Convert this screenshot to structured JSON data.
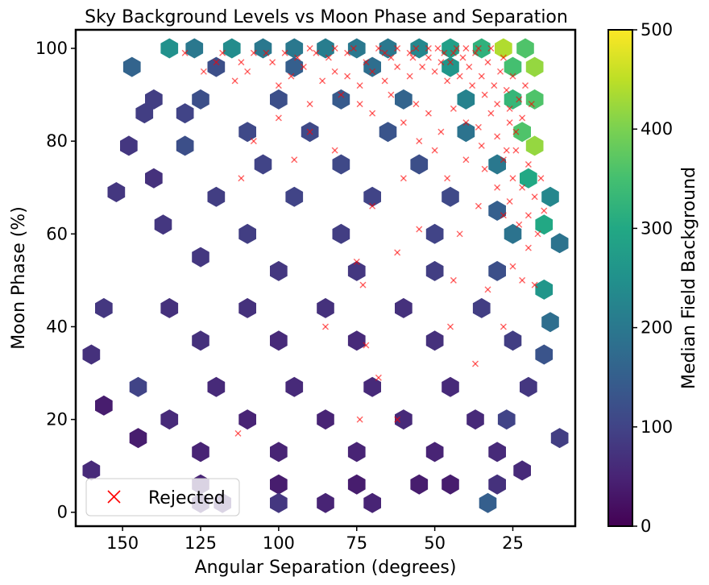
{
  "chart_data": {
    "type": "hexbin",
    "title": "Sky Background Levels vs Moon Phase and Separation",
    "xlabel": "Angular Separation (degrees)",
    "ylabel": "Moon Phase (%)",
    "x_inverted": true,
    "xlim": [
      165,
      5
    ],
    "ylim": [
      -3,
      104
    ],
    "x_ticks": [
      150,
      125,
      100,
      75,
      50,
      25
    ],
    "y_ticks": [
      0,
      20,
      40,
      60,
      80,
      100
    ],
    "colorbar": {
      "label": "Median Field Background",
      "colormap": "viridis",
      "range": [
        0,
        500
      ],
      "ticks": [
        0,
        100,
        200,
        300,
        400,
        500
      ]
    },
    "legend": {
      "position": "lower-left",
      "entries": [
        {
          "label": "Rejected",
          "marker": "x",
          "color": "#ff0000"
        }
      ]
    },
    "hexbin_trend": "Median background rises with moon phase and as angular separation decreases; highest values (~300-450) at phase near 100% and separation below 30 degrees.",
    "colorscale_stops": [
      "#440154",
      "#3b528b",
      "#21918c",
      "#5ec962",
      "#fde725"
    ],
    "hex_cells": [
      {
        "x": 135,
        "y": 100,
        "v": 250
      },
      {
        "x": 127,
        "y": 100,
        "v": 200
      },
      {
        "x": 115,
        "y": 100,
        "v": 240
      },
      {
        "x": 105,
        "y": 100,
        "v": 200
      },
      {
        "x": 95,
        "y": 100,
        "v": 200
      },
      {
        "x": 85,
        "y": 100,
        "v": 210
      },
      {
        "x": 75,
        "y": 100,
        "v": 200
      },
      {
        "x": 65,
        "y": 100,
        "v": 200
      },
      {
        "x": 55,
        "y": 100,
        "v": 230
      },
      {
        "x": 45,
        "y": 100,
        "v": 280
      },
      {
        "x": 35,
        "y": 100,
        "v": 320
      },
      {
        "x": 28,
        "y": 100,
        "v": 440
      },
      {
        "x": 21,
        "y": 100,
        "v": 360
      },
      {
        "x": 147,
        "y": 96,
        "v": 160
      },
      {
        "x": 120,
        "y": 96,
        "v": 120
      },
      {
        "x": 95,
        "y": 96,
        "v": 150
      },
      {
        "x": 70,
        "y": 96,
        "v": 180
      },
      {
        "x": 45,
        "y": 96,
        "v": 260
      },
      {
        "x": 25,
        "y": 96,
        "v": 350
      },
      {
        "x": 18,
        "y": 96,
        "v": 420
      },
      {
        "x": 140,
        "y": 89,
        "v": 90
      },
      {
        "x": 125,
        "y": 89,
        "v": 120
      },
      {
        "x": 100,
        "y": 89,
        "v": 120
      },
      {
        "x": 80,
        "y": 89,
        "v": 140
      },
      {
        "x": 60,
        "y": 89,
        "v": 160
      },
      {
        "x": 40,
        "y": 89,
        "v": 220
      },
      {
        "x": 25,
        "y": 89,
        "v": 330
      },
      {
        "x": 18,
        "y": 89,
        "v": 360
      },
      {
        "x": 143,
        "y": 86,
        "v": 90
      },
      {
        "x": 130,
        "y": 86,
        "v": 100
      },
      {
        "x": 110,
        "y": 82,
        "v": 110
      },
      {
        "x": 90,
        "y": 82,
        "v": 110
      },
      {
        "x": 65,
        "y": 82,
        "v": 130
      },
      {
        "x": 40,
        "y": 82,
        "v": 190
      },
      {
        "x": 22,
        "y": 82,
        "v": 360
      },
      {
        "x": 18,
        "y": 79,
        "v": 420
      },
      {
        "x": 148,
        "y": 79,
        "v": 80
      },
      {
        "x": 130,
        "y": 79,
        "v": 120
      },
      {
        "x": 105,
        "y": 75,
        "v": 100
      },
      {
        "x": 80,
        "y": 75,
        "v": 110
      },
      {
        "x": 55,
        "y": 75,
        "v": 120
      },
      {
        "x": 30,
        "y": 75,
        "v": 200
      },
      {
        "x": 20,
        "y": 72,
        "v": 300
      },
      {
        "x": 152,
        "y": 69,
        "v": 80
      },
      {
        "x": 140,
        "y": 72,
        "v": 70
      },
      {
        "x": 120,
        "y": 68,
        "v": 90
      },
      {
        "x": 95,
        "y": 68,
        "v": 100
      },
      {
        "x": 70,
        "y": 68,
        "v": 100
      },
      {
        "x": 45,
        "y": 68,
        "v": 110
      },
      {
        "x": 30,
        "y": 65,
        "v": 150
      },
      {
        "x": 13,
        "y": 68,
        "v": 230
      },
      {
        "x": 137,
        "y": 62,
        "v": 80
      },
      {
        "x": 110,
        "y": 60,
        "v": 90
      },
      {
        "x": 80,
        "y": 60,
        "v": 90
      },
      {
        "x": 50,
        "y": 60,
        "v": 100
      },
      {
        "x": 25,
        "y": 60,
        "v": 190
      },
      {
        "x": 15,
        "y": 62,
        "v": 300
      },
      {
        "x": 10,
        "y": 58,
        "v": 190
      },
      {
        "x": 125,
        "y": 55,
        "v": 80
      },
      {
        "x": 100,
        "y": 52,
        "v": 80
      },
      {
        "x": 75,
        "y": 52,
        "v": 80
      },
      {
        "x": 50,
        "y": 52,
        "v": 90
      },
      {
        "x": 30,
        "y": 52,
        "v": 120
      },
      {
        "x": 15,
        "y": 48,
        "v": 260
      },
      {
        "x": 156,
        "y": 44,
        "v": 80
      },
      {
        "x": 135,
        "y": 44,
        "v": 70
      },
      {
        "x": 110,
        "y": 44,
        "v": 70
      },
      {
        "x": 85,
        "y": 44,
        "v": 70
      },
      {
        "x": 60,
        "y": 44,
        "v": 70
      },
      {
        "x": 35,
        "y": 44,
        "v": 90
      },
      {
        "x": 13,
        "y": 41,
        "v": 180
      },
      {
        "x": 160,
        "y": 34,
        "v": 70
      },
      {
        "x": 125,
        "y": 37,
        "v": 70
      },
      {
        "x": 100,
        "y": 37,
        "v": 60
      },
      {
        "x": 75,
        "y": 37,
        "v": 60
      },
      {
        "x": 50,
        "y": 37,
        "v": 70
      },
      {
        "x": 25,
        "y": 37,
        "v": 90
      },
      {
        "x": 15,
        "y": 34,
        "v": 130
      },
      {
        "x": 145,
        "y": 27,
        "v": 100
      },
      {
        "x": 120,
        "y": 27,
        "v": 60
      },
      {
        "x": 95,
        "y": 27,
        "v": 60
      },
      {
        "x": 70,
        "y": 27,
        "v": 60
      },
      {
        "x": 45,
        "y": 27,
        "v": 60
      },
      {
        "x": 20,
        "y": 27,
        "v": 80
      },
      {
        "x": 156,
        "y": 23,
        "v": 40
      },
      {
        "x": 135,
        "y": 20,
        "v": 60
      },
      {
        "x": 110,
        "y": 20,
        "v": 50
      },
      {
        "x": 85,
        "y": 20,
        "v": 50
      },
      {
        "x": 60,
        "y": 20,
        "v": 60
      },
      {
        "x": 37,
        "y": 20,
        "v": 60
      },
      {
        "x": 27,
        "y": 20,
        "v": 100
      },
      {
        "x": 145,
        "y": 16,
        "v": 40
      },
      {
        "x": 125,
        "y": 13,
        "v": 50
      },
      {
        "x": 100,
        "y": 13,
        "v": 50
      },
      {
        "x": 75,
        "y": 13,
        "v": 50
      },
      {
        "x": 50,
        "y": 13,
        "v": 50
      },
      {
        "x": 30,
        "y": 13,
        "v": 60
      },
      {
        "x": 10,
        "y": 16,
        "v": 90
      },
      {
        "x": 160,
        "y": 9,
        "v": 60
      },
      {
        "x": 125,
        "y": 6,
        "v": 50
      },
      {
        "x": 100,
        "y": 6,
        "v": 40
      },
      {
        "x": 75,
        "y": 6,
        "v": 40
      },
      {
        "x": 55,
        "y": 6,
        "v": 40
      },
      {
        "x": 45,
        "y": 6,
        "v": 40
      },
      {
        "x": 30,
        "y": 6,
        "v": 70
      },
      {
        "x": 22,
        "y": 9,
        "v": 60
      },
      {
        "x": 125,
        "y": 2,
        "v": 60
      },
      {
        "x": 118,
        "y": 2,
        "v": 60
      },
      {
        "x": 100,
        "y": 2,
        "v": 80
      },
      {
        "x": 85,
        "y": 2,
        "v": 50
      },
      {
        "x": 70,
        "y": 2,
        "v": 50
      },
      {
        "x": 33,
        "y": 2,
        "v": 150
      }
    ],
    "rejected_points": [
      {
        "x": 72,
        "y": 36
      },
      {
        "x": 85,
        "y": 40
      },
      {
        "x": 68,
        "y": 29
      },
      {
        "x": 73,
        "y": 49
      },
      {
        "x": 45,
        "y": 40
      },
      {
        "x": 37,
        "y": 32
      },
      {
        "x": 113,
        "y": 17
      },
      {
        "x": 74,
        "y": 20
      },
      {
        "x": 62,
        "y": 20
      },
      {
        "x": 75,
        "y": 54
      },
      {
        "x": 70,
        "y": 66
      },
      {
        "x": 55,
        "y": 61
      },
      {
        "x": 42,
        "y": 60
      },
      {
        "x": 28,
        "y": 40
      },
      {
        "x": 33,
        "y": 48
      },
      {
        "x": 22,
        "y": 50
      },
      {
        "x": 18,
        "y": 49
      },
      {
        "x": 25,
        "y": 53
      },
      {
        "x": 20,
        "y": 57
      },
      {
        "x": 23,
        "y": 62
      },
      {
        "x": 15,
        "y": 65
      },
      {
        "x": 17,
        "y": 60
      },
      {
        "x": 28,
        "y": 64
      },
      {
        "x": 30,
        "y": 70
      },
      {
        "x": 25,
        "y": 72
      },
      {
        "x": 20,
        "y": 75
      },
      {
        "x": 27,
        "y": 78
      },
      {
        "x": 30,
        "y": 81
      },
      {
        "x": 24,
        "y": 82
      },
      {
        "x": 35,
        "y": 79
      },
      {
        "x": 40,
        "y": 84
      },
      {
        "x": 50,
        "y": 78
      },
      {
        "x": 55,
        "y": 80
      },
      {
        "x": 60,
        "y": 84
      },
      {
        "x": 70,
        "y": 86
      },
      {
        "x": 80,
        "y": 90
      },
      {
        "x": 90,
        "y": 88
      },
      {
        "x": 100,
        "y": 92
      },
      {
        "x": 110,
        "y": 95
      },
      {
        "x": 120,
        "y": 97
      },
      {
        "x": 130,
        "y": 99
      },
      {
        "x": 108,
        "y": 99
      },
      {
        "x": 98,
        "y": 99
      },
      {
        "x": 90,
        "y": 100
      },
      {
        "x": 84,
        "y": 98
      },
      {
        "x": 78,
        "y": 99
      },
      {
        "x": 72,
        "y": 97
      },
      {
        "x": 66,
        "y": 99
      },
      {
        "x": 62,
        "y": 100
      },
      {
        "x": 58,
        "y": 99
      },
      {
        "x": 56,
        "y": 100
      },
      {
        "x": 52,
        "y": 98
      },
      {
        "x": 49,
        "y": 100
      },
      {
        "x": 47,
        "y": 99
      },
      {
        "x": 45,
        "y": 97
      },
      {
        "x": 43,
        "y": 100
      },
      {
        "x": 41,
        "y": 98
      },
      {
        "x": 39,
        "y": 96
      },
      {
        "x": 37,
        "y": 99
      },
      {
        "x": 35,
        "y": 94
      },
      {
        "x": 33,
        "y": 97
      },
      {
        "x": 31,
        "y": 92
      },
      {
        "x": 29,
        "y": 95
      },
      {
        "x": 27,
        "y": 91
      },
      {
        "x": 25,
        "y": 94
      },
      {
        "x": 23,
        "y": 89
      },
      {
        "x": 21,
        "y": 92
      },
      {
        "x": 19,
        "y": 88
      },
      {
        "x": 22,
        "y": 85
      },
      {
        "x": 26,
        "y": 87
      },
      {
        "x": 30,
        "y": 88
      },
      {
        "x": 34,
        "y": 90
      },
      {
        "x": 38,
        "y": 92
      },
      {
        "x": 42,
        "y": 94
      },
      {
        "x": 46,
        "y": 93
      },
      {
        "x": 50,
        "y": 95
      },
      {
        "x": 54,
        "y": 96
      },
      {
        "x": 58,
        "y": 94
      },
      {
        "x": 62,
        "y": 96
      },
      {
        "x": 66,
        "y": 93
      },
      {
        "x": 70,
        "y": 95
      },
      {
        "x": 74,
        "y": 92
      },
      {
        "x": 78,
        "y": 94
      },
      {
        "x": 82,
        "y": 95
      },
      {
        "x": 86,
        "y": 93
      },
      {
        "x": 92,
        "y": 96
      },
      {
        "x": 96,
        "y": 94
      },
      {
        "x": 102,
        "y": 97
      },
      {
        "x": 114,
        "y": 93
      },
      {
        "x": 124,
        "y": 95
      },
      {
        "x": 118,
        "y": 99
      },
      {
        "x": 28,
        "y": 98
      },
      {
        "x": 32,
        "y": 100
      },
      {
        "x": 36,
        "y": 100
      },
      {
        "x": 40,
        "y": 100
      },
      {
        "x": 44,
        "y": 99
      },
      {
        "x": 48,
        "y": 97
      },
      {
        "x": 52,
        "y": 100
      },
      {
        "x": 57,
        "y": 98
      },
      {
        "x": 64,
        "y": 98
      },
      {
        "x": 68,
        "y": 100
      },
      {
        "x": 76,
        "y": 100
      },
      {
        "x": 82,
        "y": 100
      },
      {
        "x": 88,
        "y": 99
      },
      {
        "x": 94,
        "y": 98
      },
      {
        "x": 104,
        "y": 99
      },
      {
        "x": 112,
        "y": 97
      },
      {
        "x": 32,
        "y": 86
      },
      {
        "x": 36,
        "y": 83
      },
      {
        "x": 44,
        "y": 87
      },
      {
        "x": 48,
        "y": 82
      },
      {
        "x": 52,
        "y": 86
      },
      {
        "x": 56,
        "y": 88
      },
      {
        "x": 64,
        "y": 90
      },
      {
        "x": 74,
        "y": 88
      },
      {
        "x": 26,
        "y": 84
      },
      {
        "x": 28,
        "y": 76
      },
      {
        "x": 24,
        "y": 78
      },
      {
        "x": 22,
        "y": 70
      },
      {
        "x": 18,
        "y": 68
      },
      {
        "x": 16,
        "y": 72
      },
      {
        "x": 34,
        "y": 74
      },
      {
        "x": 40,
        "y": 76
      },
      {
        "x": 46,
        "y": 72
      },
      {
        "x": 60,
        "y": 72
      },
      {
        "x": 26,
        "y": 67
      },
      {
        "x": 20,
        "y": 64
      },
      {
        "x": 36,
        "y": 66
      },
      {
        "x": 62,
        "y": 56
      },
      {
        "x": 44,
        "y": 50
      },
      {
        "x": 82,
        "y": 78
      },
      {
        "x": 90,
        "y": 82
      },
      {
        "x": 100,
        "y": 85
      },
      {
        "x": 108,
        "y": 80
      },
      {
        "x": 112,
        "y": 72
      },
      {
        "x": 95,
        "y": 76
      }
    ]
  }
}
